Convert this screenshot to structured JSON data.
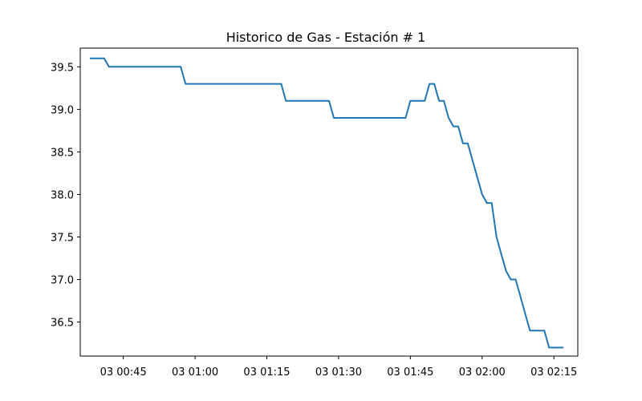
{
  "chart_data": {
    "type": "line",
    "title": "Historico de Gas - Estación # 1",
    "xlabel": "",
    "ylabel": "",
    "line_color": "#1f77b4",
    "grid": false,
    "xlim": [
      "03 00:36",
      "03 02:20"
    ],
    "ylim": [
      36.1,
      39.72
    ],
    "x_ticks": [
      {
        "value": "03 00:45",
        "label": "03 00:45"
      },
      {
        "value": "03 01:00",
        "label": "03 01:00"
      },
      {
        "value": "03 01:15",
        "label": "03 01:15"
      },
      {
        "value": "03 01:30",
        "label": "03 01:30"
      },
      {
        "value": "03 01:45",
        "label": "03 01:45"
      },
      {
        "value": "03 02:00",
        "label": "03 02:00"
      },
      {
        "value": "03 02:15",
        "label": "03 02:15"
      }
    ],
    "y_ticks": [
      {
        "value": 36.5,
        "label": "36.5"
      },
      {
        "value": 37.0,
        "label": "37.0"
      },
      {
        "value": 37.5,
        "label": "37.5"
      },
      {
        "value": 38.0,
        "label": "38.0"
      },
      {
        "value": 38.5,
        "label": "38.5"
      },
      {
        "value": 39.0,
        "label": "39.0"
      },
      {
        "value": 39.5,
        "label": "39.5"
      }
    ],
    "series": [
      {
        "x": [
          "03 00:38",
          "03 00:41",
          "03 00:42",
          "03 00:57",
          "03 00:58",
          "03 01:18",
          "03 01:19",
          "03 01:28",
          "03 01:29",
          "03 01:44",
          "03 01:45",
          "03 01:48",
          "03 01:49",
          "03 01:50",
          "03 01:51",
          "03 01:52",
          "03 01:53",
          "03 01:54",
          "03 01:55",
          "03 01:56",
          "03 01:57",
          "03 01:58",
          "03 01:59",
          "03 02:00",
          "03 02:01",
          "03 02:02",
          "03 02:03",
          "03 02:04",
          "03 02:05",
          "03 02:06",
          "03 02:07",
          "03 02:08",
          "03 02:09",
          "03 02:10",
          "03 02:11",
          "03 02:12",
          "03 02:13",
          "03 02:14",
          "03 02:17"
        ],
        "values": [
          39.6,
          39.6,
          39.5,
          39.5,
          39.3,
          39.3,
          39.1,
          39.1,
          38.9,
          38.9,
          39.1,
          39.1,
          39.3,
          39.3,
          39.1,
          39.1,
          38.9,
          38.8,
          38.8,
          38.6,
          38.6,
          38.4,
          38.2,
          38.0,
          37.9,
          37.9,
          37.5,
          37.3,
          37.1,
          37.0,
          37.0,
          36.8,
          36.6,
          36.4,
          36.4,
          36.4,
          36.4,
          36.2,
          36.2
        ]
      }
    ]
  }
}
